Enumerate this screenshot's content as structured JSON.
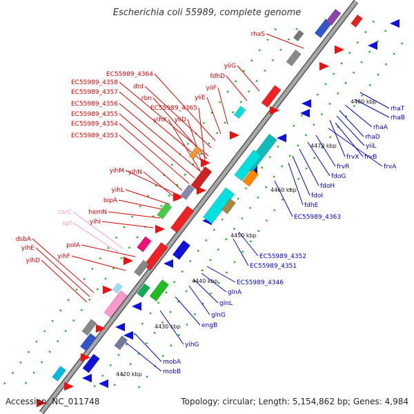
{
  "title": "Escherichia coli 55989, complete genome",
  "accession": "Accession: NC_011748",
  "summary": "Topology: circular; Length: 5,154,862 bp; Genes: 4,984",
  "colors": {
    "backbone": "#888888",
    "plus_strand_label": "#d40000",
    "minus_strand_label": "#0000cc",
    "rna_label": "#ff99cc",
    "tick": "#22aa22"
  },
  "kbp_ticks": [
    "4420 kbp",
    "4430 kbp",
    "4440 kbp",
    "4450 kbp",
    "4460 kbp",
    "4470 kbp",
    "4480 kbp"
  ],
  "plus_genes": [
    "rhaS",
    "yiiG",
    "fdhD",
    "yiiF",
    "yiiE",
    "EC55989_4364",
    "dtd",
    "EC55989_4358",
    "rbn",
    "EC55989_4357",
    "EC55989_4365",
    "EC55989_4356",
    "yihX",
    "yiiD",
    "EC55989_4355",
    "EC55989_4354",
    "EC55989_4353",
    "yihM",
    "yihN",
    "yihL",
    "bipA",
    "hemN",
    "yihI",
    "polA",
    "yihF",
    "dsbA",
    "yihE",
    "yihD"
  ],
  "rna_genes": [
    "csrC",
    "spf"
  ],
  "minus_genes": [
    "rhaT",
    "rhaB",
    "rhaA",
    "rhaD",
    "yiiL",
    "frvX",
    "frvB",
    "frvA",
    "frvR",
    "fdoG",
    "fdoH",
    "fdoI",
    "fdhE",
    "EC55989_4363",
    "EC55989_4352",
    "EC55989_4351",
    "EC55989_4346",
    "glnA",
    "glnL",
    "glnG",
    "engB",
    "yihG",
    "mobA",
    "mobB"
  ]
}
